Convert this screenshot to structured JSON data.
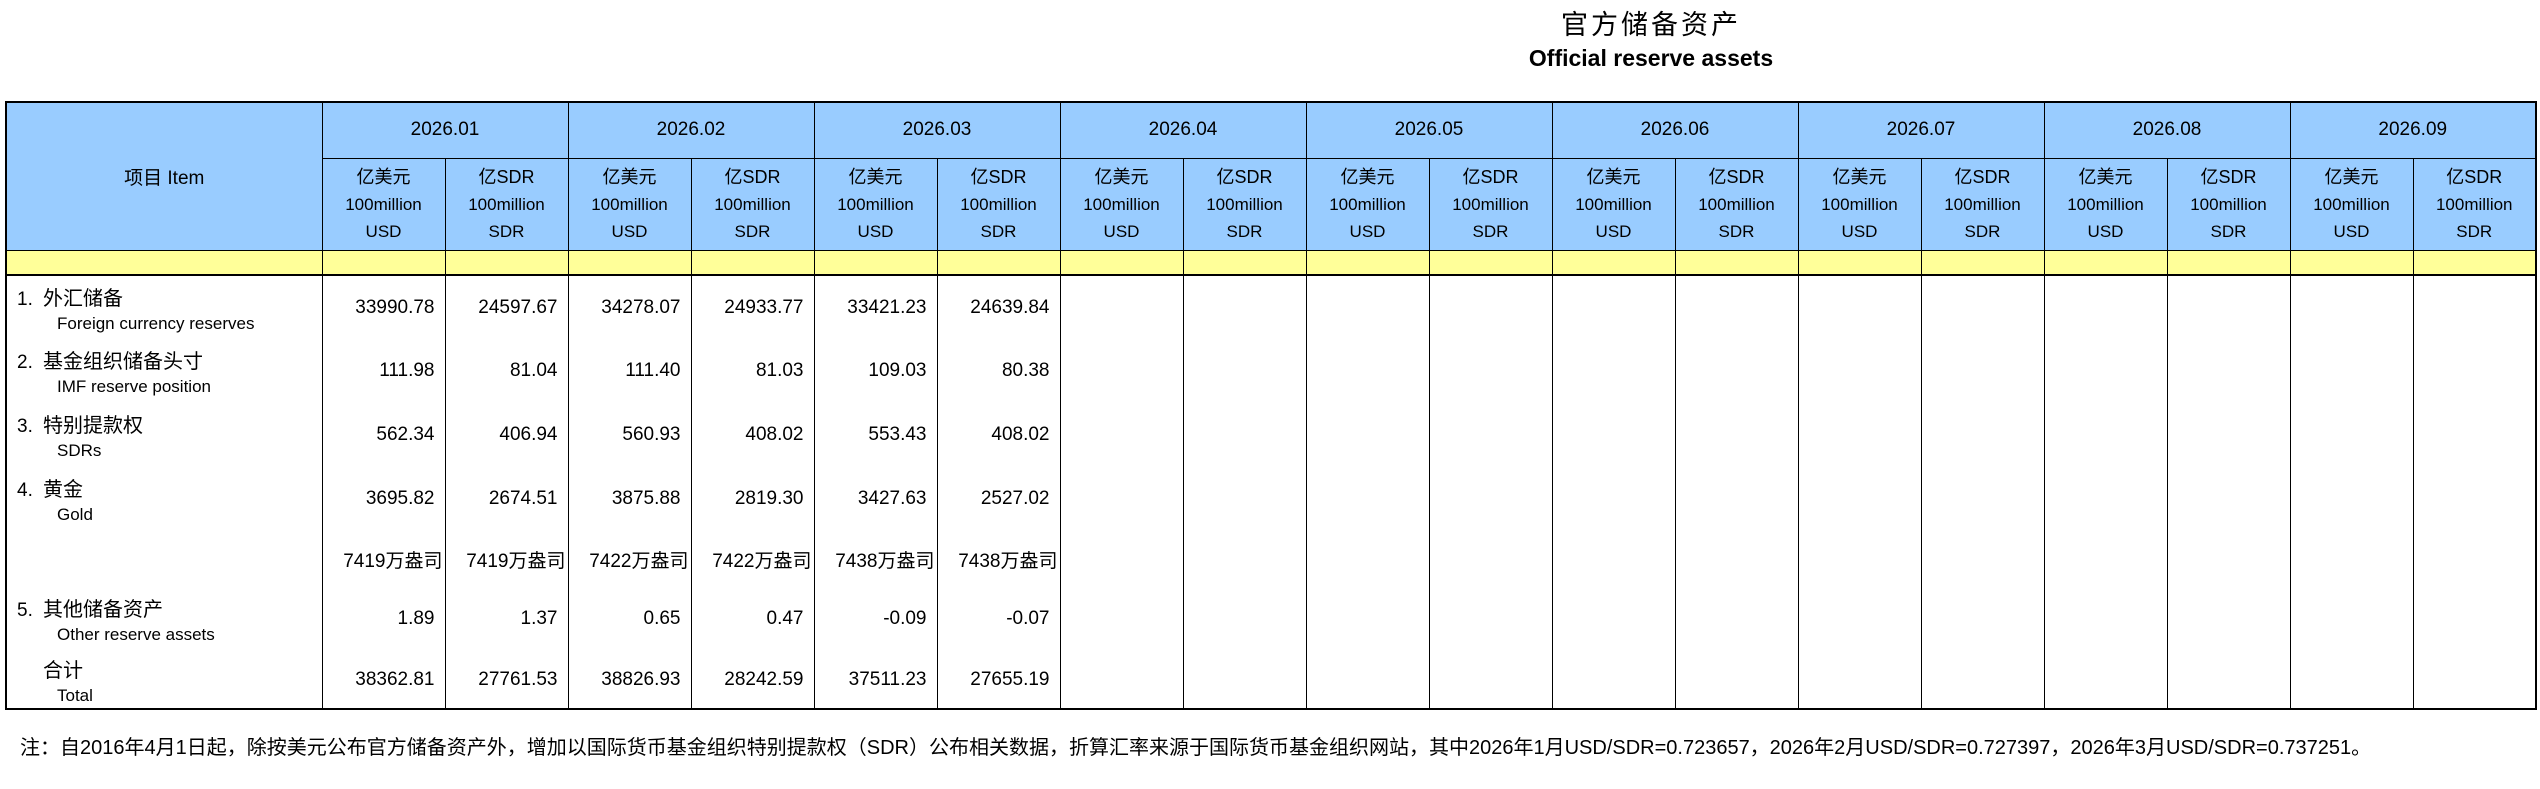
{
  "title": {
    "zh": "官方储备资产",
    "en": "Official reserve assets"
  },
  "colors": {
    "header_blue": "#99CCFF",
    "separator_yellow": "#FFFF99",
    "border": "#000000"
  },
  "table": {
    "item_header": "项目  Item",
    "months": [
      "2026.01",
      "2026.02",
      "2026.03",
      "2026.04",
      "2026.05",
      "2026.06",
      "2026.07",
      "2026.08",
      "2026.09"
    ],
    "unit_usd": {
      "l1": "亿美元",
      "l2": "100million",
      "l3": "USD"
    },
    "unit_sdr": {
      "l1": "亿SDR",
      "l2": "100million",
      "l3": "SDR"
    },
    "rows": [
      {
        "no": "1.",
        "zh": "外汇储备",
        "en": "Foreign currency reserves",
        "values": [
          "33990.78",
          "24597.67",
          "34278.07",
          "24933.77",
          "33421.23",
          "24639.84",
          "",
          "",
          "",
          "",
          "",
          "",
          "",
          "",
          "",
          "",
          "",
          ""
        ]
      },
      {
        "no": "2.",
        "zh": "基金组织储备头寸",
        "en": "IMF reserve position",
        "values": [
          "111.98",
          "81.04",
          "111.40",
          "81.03",
          "109.03",
          "80.38",
          "",
          "",
          "",
          "",
          "",
          "",
          "",
          "",
          "",
          "",
          "",
          ""
        ]
      },
      {
        "no": "3.",
        "zh": "特别提款权",
        "en": "SDRs",
        "values": [
          "562.34",
          "406.94",
          "560.93",
          "408.02",
          "553.43",
          "408.02",
          "",
          "",
          "",
          "",
          "",
          "",
          "",
          "",
          "",
          "",
          "",
          ""
        ]
      },
      {
        "no": "4.",
        "zh": "黄金",
        "en": "Gold",
        "values": [
          "3695.82",
          "2674.51",
          "3875.88",
          "2819.30",
          "3427.63",
          "2527.02",
          "",
          "",
          "",
          "",
          "",
          "",
          "",
          "",
          "",
          "",
          "",
          ""
        ]
      },
      {
        "no": "",
        "zh": "",
        "en": "",
        "values": [
          "7419万盎司",
          "7419万盎司",
          "7422万盎司",
          "7422万盎司",
          "7438万盎司",
          "7438万盎司",
          "",
          "",
          "",
          "",
          "",
          "",
          "",
          "",
          "",
          "",
          "",
          ""
        ]
      },
      {
        "no": "5.",
        "zh": "其他储备资产",
        "en": "Other reserve assets",
        "values": [
          "1.89",
          "1.37",
          "0.65",
          "0.47",
          "-0.09",
          "-0.07",
          "",
          "",
          "",
          "",
          "",
          "",
          "",
          "",
          "",
          "",
          "",
          ""
        ]
      },
      {
        "no": "",
        "zh": "合计",
        "en": "Total",
        "values": [
          "38362.81",
          "27761.53",
          "38826.93",
          "28242.59",
          "37511.23",
          "27655.19",
          "",
          "",
          "",
          "",
          "",
          "",
          "",
          "",
          "",
          "",
          "",
          ""
        ]
      }
    ]
  },
  "note": "注：自2016年4月1日起，除按美元公布官方储备资产外，增加以国际货币基金组织特别提款权（SDR）公布相关数据，折算汇率来源于国际货币基金组织网站，其中2026年1月USD/SDR=0.723657，2026年2月USD/SDR=0.727397，2026年3月USD/SDR=0.737251。"
}
